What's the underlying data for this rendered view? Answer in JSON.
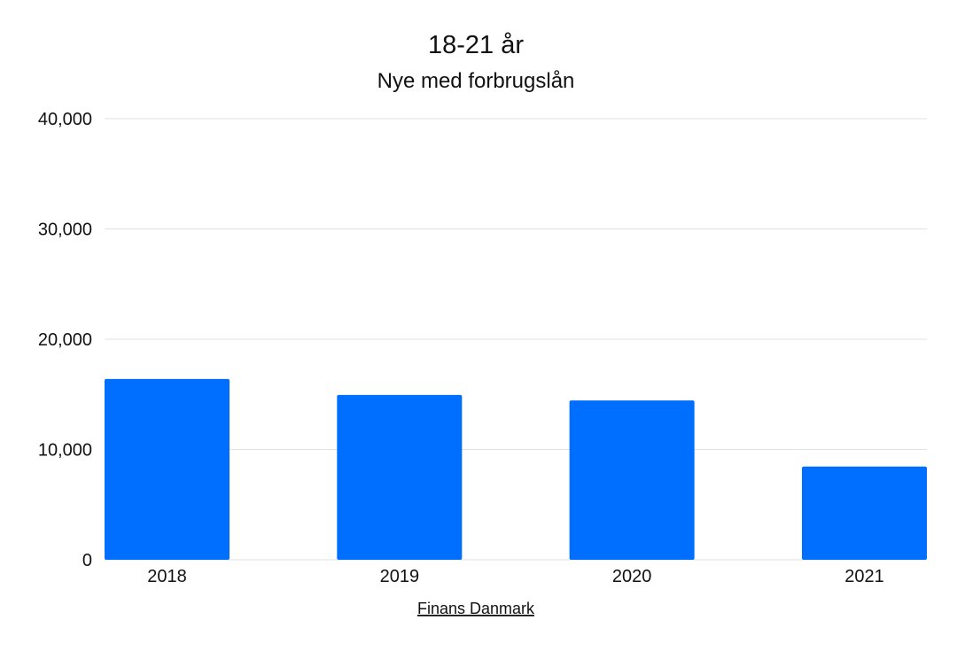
{
  "chart_data": {
    "type": "bar",
    "title": "18-21 år",
    "subtitle": "Nye med forbrugslån",
    "categories": [
      "2018",
      "2019",
      "2020",
      "2021"
    ],
    "values": [
      16400,
      14950,
      14450,
      8450
    ],
    "ylim": [
      0,
      40000
    ],
    "yticks": [
      0,
      10000,
      20000,
      30000,
      40000
    ],
    "ytick_labels": [
      "0",
      "10,000",
      "20,000",
      "30,000",
      "40,000"
    ],
    "grid": true,
    "bar_color": "#006FFF",
    "grid_color": "#E2E2E2"
  },
  "source": {
    "label": "Finans Danmark"
  }
}
